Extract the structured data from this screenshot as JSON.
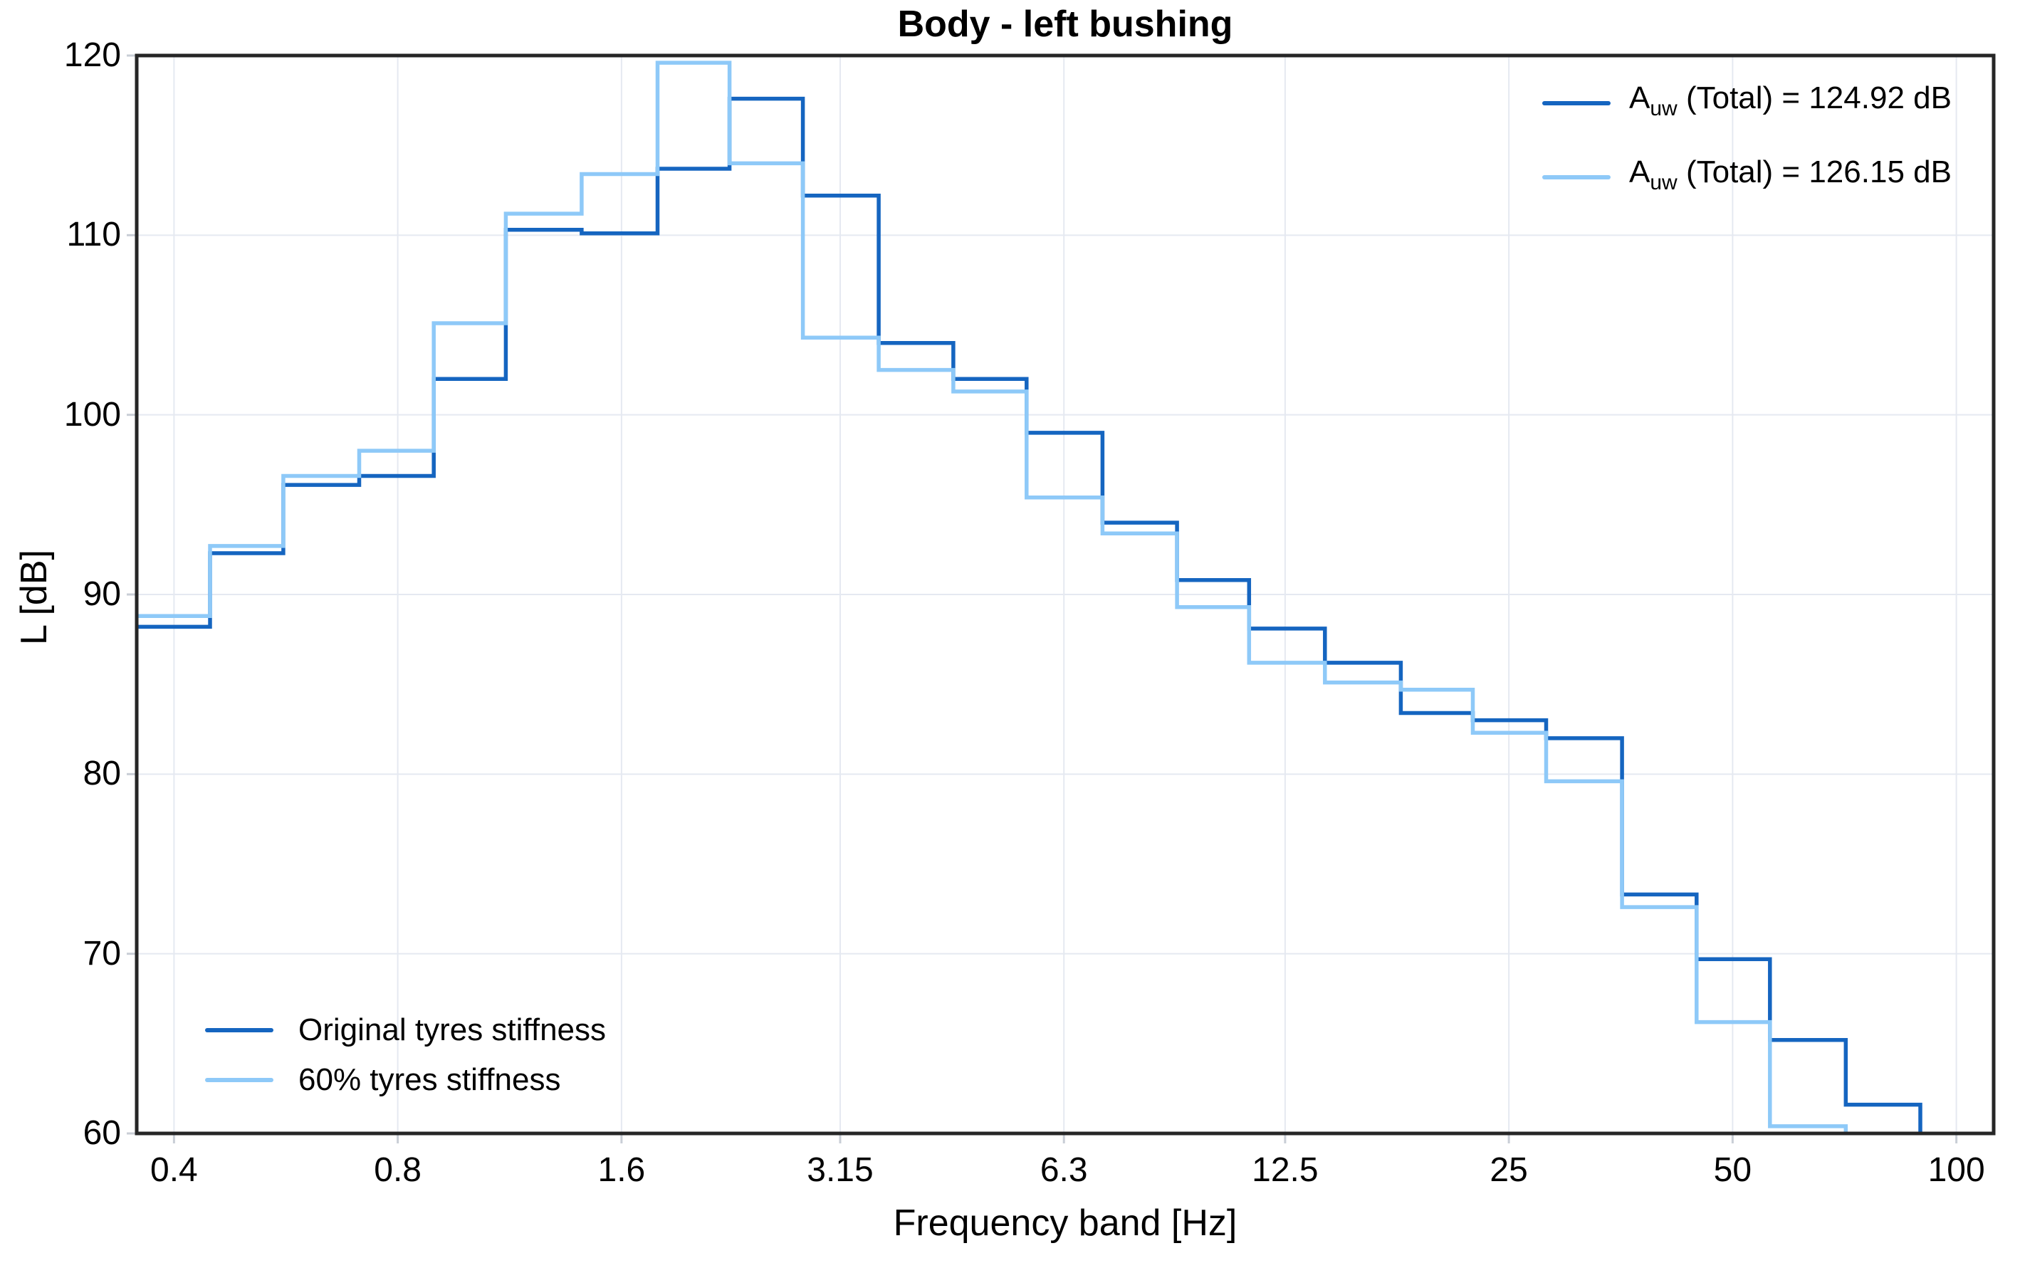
{
  "title": "Body - left bushing",
  "colors": {
    "original": "#1565C0",
    "sixty_pct": "#8EC9F8",
    "gridline": "#E5E9F1",
    "tick_mark": "#C9CED6",
    "spine": "#262626",
    "background": "#FFFFFF",
    "text": "#000000"
  },
  "legend_top_right": {
    "entries": [
      {
        "prefix": "A",
        "sub": "uw",
        "rest": " (Total) = 124.92 dB",
        "series": "original",
        "total_db": 124.92
      },
      {
        "prefix": "A",
        "sub": "uw",
        "rest": " (Total) = 126.15 dB",
        "series": "sixty_pct",
        "total_db": 126.15
      }
    ]
  },
  "legend_bottom_left": {
    "entries": [
      {
        "label": "Original tyres stiffness",
        "series": "original"
      },
      {
        "label": "60% tyres stiffness",
        "series": "sixty_pct"
      }
    ]
  },
  "chart_data": {
    "type": "line",
    "subtype": "step-third-octave-band-spectrum",
    "title": "Body - left bushing",
    "xlabel": "Frequency band [Hz]",
    "ylabel": "L [dB]",
    "x_scale": "log",
    "ylim": [
      60,
      120
    ],
    "grid": true,
    "x_tick_values": [
      0.4,
      0.8,
      1.6,
      3.15,
      6.3,
      12.5,
      25,
      50,
      100
    ],
    "x_tick_labels": [
      "0.4",
      "0.8",
      "1.6",
      "3.15",
      "6.3",
      "12.5",
      "25",
      "50",
      "100"
    ],
    "y_tick_values": [
      60,
      70,
      80,
      90,
      100,
      110,
      120
    ],
    "y_tick_labels": [
      "60",
      "70",
      "80",
      "90",
      "100",
      "110",
      "120"
    ],
    "categories": [
      0.4,
      0.5,
      0.63,
      0.8,
      1,
      1.25,
      1.6,
      2,
      2.5,
      3.15,
      4,
      5,
      6.3,
      8,
      10,
      12.5,
      16,
      20,
      25,
      31.5,
      40,
      50,
      63,
      80,
      100
    ],
    "series": [
      {
        "name": "Original tyres stiffness",
        "color_key": "original",
        "total_db": 124.92,
        "values": [
          88.2,
          92.3,
          96.1,
          96.6,
          102.0,
          110.3,
          110.1,
          113.7,
          117.6,
          112.2,
          104.0,
          102.0,
          99.0,
          94.0,
          90.8,
          88.1,
          86.2,
          83.4,
          83.0,
          82.0,
          73.3,
          69.7,
          65.2,
          61.6,
          58.0
        ]
      },
      {
        "name": "60% tyres stiffness",
        "color_key": "sixty_pct",
        "total_db": 126.15,
        "values": [
          88.8,
          92.7,
          96.6,
          98.0,
          105.1,
          111.2,
          113.4,
          119.6,
          114.0,
          104.3,
          102.5,
          101.3,
          95.4,
          93.4,
          89.3,
          86.2,
          85.1,
          84.7,
          82.3,
          79.6,
          72.6,
          66.2,
          60.4,
          58.0,
          57.5
        ]
      }
    ],
    "legend_position": {
      "totals": "upper right",
      "series_names": "lower left"
    }
  }
}
